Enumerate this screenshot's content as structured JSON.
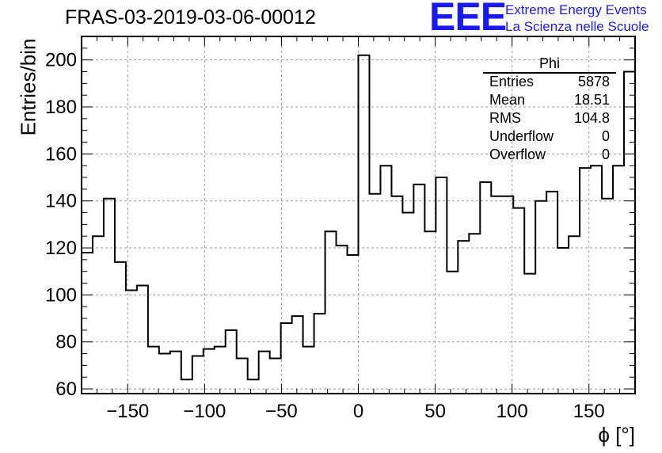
{
  "chart_data": {
    "type": "bar",
    "style": "step-histogram",
    "title": "FRAS-03-2019-03-06-00012",
    "xlabel": "ϕ [°]",
    "ylabel": "Entries/bin",
    "xlim": [
      -180,
      180
    ],
    "ylim": [
      58,
      210
    ],
    "xticks": [
      -150,
      -100,
      -50,
      0,
      50,
      100,
      150
    ],
    "yticks": [
      60,
      80,
      100,
      120,
      140,
      160,
      180,
      200
    ],
    "grid": true,
    "bin_width": 7.2,
    "bin_edges_start": -180,
    "values": [
      118,
      125,
      141,
      114,
      102,
      104,
      78,
      75,
      76,
      64,
      74,
      77,
      78,
      85,
      73,
      64,
      76,
      73,
      88,
      91,
      78,
      92,
      127,
      121,
      117,
      202,
      143,
      155,
      142,
      135,
      147,
      127,
      150,
      110,
      123,
      126,
      148,
      142,
      142,
      137,
      109,
      140,
      144,
      120,
      125,
      154,
      155,
      141,
      155,
      195
    ]
  },
  "stats": {
    "title": "Phi",
    "rows": [
      {
        "key": "Entries",
        "value": "5878"
      },
      {
        "key": "Mean",
        "value": "18.51"
      },
      {
        "key": "RMS",
        "value": "104.8"
      },
      {
        "key": "Underflow",
        "value": "0"
      },
      {
        "key": "Overflow",
        "value": "0"
      }
    ]
  },
  "logo": {
    "mark": "EEE",
    "line1": "Extreme Energy Events",
    "line2": "La Scienza nelle Scuole",
    "color": "#1a1aee"
  }
}
